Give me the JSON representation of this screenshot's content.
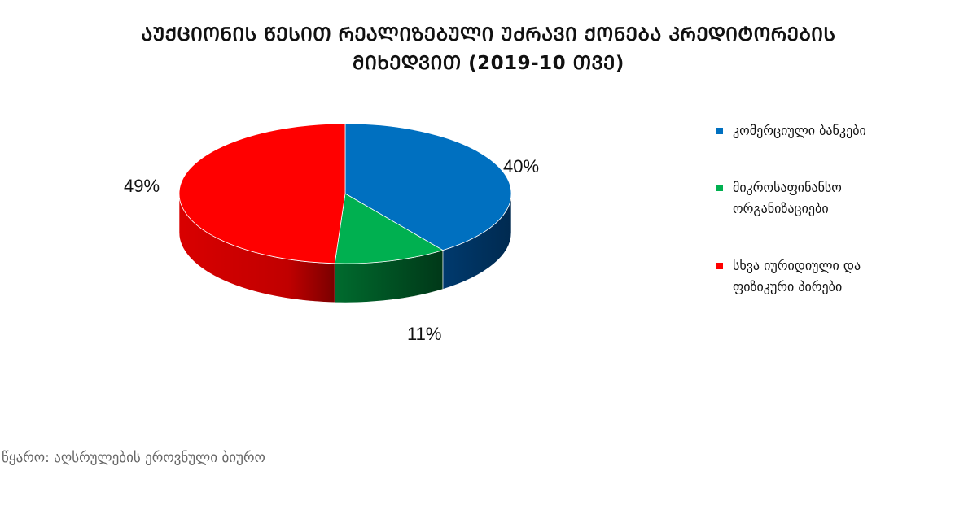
{
  "title": {
    "line1": "ᲐᲣᲥᲪᲘᲝᲜᲘᲡ ᲬᲔᲡᲘᲗ ᲠᲔᲐᲚᲘᲖᲔᲑᲣᲚᲘ ᲣᲫᲠᲐᲕᲘ ᲥᲝᲜᲔᲑᲐ ᲙᲠᲔᲓᲘᲢᲝᲠᲔᲑᲘᲡ",
    "line2": "ᲛᲘᲮᲔᲓᲕᲘᲗ (2019-10 ᲗᲕᲔ)"
  },
  "source": "წყარო: აღსრულების ეროვნული ბიურო",
  "colors": {
    "commercial_banks": "#0070C0",
    "microfinance": "#00B050",
    "other_persons": "#FF0000"
  },
  "chart_data": {
    "type": "pie",
    "title": "ᲐᲣᲥᲪᲘᲝᲜᲘᲡ ᲬᲔᲡᲘᲗ ᲠᲔᲐᲚᲘᲖᲔᲑᲣᲚᲘ ᲣᲫᲠᲐᲕᲘ ᲥᲝᲜᲔᲑᲐ ᲙᲠᲔᲓᲘᲢᲝᲠᲔᲑᲘᲡ ᲛᲘᲮᲔᲓᲕᲘᲗ (2019-10 ᲗᲕᲔ)",
    "legend_position": "right",
    "three_d": true,
    "slices": [
      {
        "name": "კომერციული  ბანკები",
        "value": 40,
        "label": "40%",
        "color": "#0070C0"
      },
      {
        "name": "მიკროსაფინანსო ორგანიზაციები",
        "value": 11,
        "label": "11%",
        "color": "#00B050"
      },
      {
        "name": "სხვა იურიდიული და ფიზიკური პირები",
        "value": 49,
        "label": "49%",
        "color": "#FF0000"
      }
    ]
  }
}
